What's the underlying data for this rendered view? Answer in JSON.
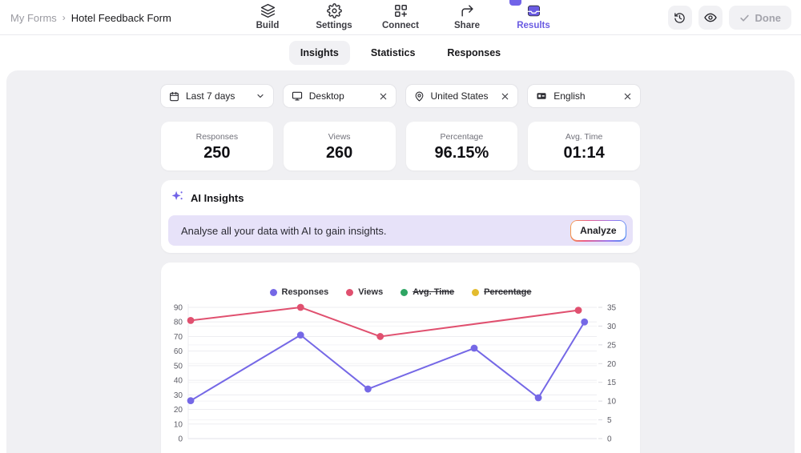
{
  "topbar": {
    "breadcrumb": {
      "parent": "My Forms",
      "separator": "›",
      "current": "Hotel Feedback Form"
    },
    "nav": {
      "items": [
        {
          "label": "Build",
          "icon": "layers-icon",
          "active": false
        },
        {
          "label": "Settings",
          "icon": "gear-icon",
          "active": false
        },
        {
          "label": "Connect",
          "icon": "grid-plus-icon",
          "active": false
        },
        {
          "label": "Share",
          "icon": "share-arrow-icon",
          "active": false
        },
        {
          "label": "Results",
          "icon": "inbox-icon",
          "active": true
        }
      ]
    },
    "actions": {
      "done_label": "Done"
    }
  },
  "tabs": {
    "items": [
      {
        "label": "Insights",
        "active": true
      },
      {
        "label": "Statistics",
        "active": false
      },
      {
        "label": "Responses",
        "active": false
      }
    ]
  },
  "filters": [
    {
      "icon": "calendar-icon",
      "label": "Last 7 days",
      "control": "chevron-down"
    },
    {
      "icon": "monitor-icon",
      "label": "Desktop",
      "control": "close"
    },
    {
      "icon": "map-pin-icon",
      "label": "United States",
      "control": "close"
    },
    {
      "icon": "language-icon",
      "label": "English",
      "control": "close"
    }
  ],
  "stats": [
    {
      "label": "Responses",
      "value": "250"
    },
    {
      "label": "Views",
      "value": "260"
    },
    {
      "label": "Percentage",
      "value": "96.15%"
    },
    {
      "label": "Avg. Time",
      "value": "01:14"
    }
  ],
  "ai_insights": {
    "title": "AI Insights",
    "message": "Analyse all your data with AI to gain insights.",
    "button_label": "Analyze"
  },
  "chart_data": {
    "type": "line",
    "title": "",
    "legend_position": "top",
    "grid": true,
    "legend": [
      {
        "name": "Responses",
        "color": "#7568e6",
        "hidden": false
      },
      {
        "name": "Views",
        "color": "#e0506f",
        "hidden": false
      },
      {
        "name": "Avg. Time",
        "color": "#2ea563",
        "hidden": true
      },
      {
        "name": "Percentage",
        "color": "#e3bc2f",
        "hidden": true
      }
    ],
    "axes": {
      "left": {
        "min": 0,
        "max": 90,
        "step": 10
      },
      "right": {
        "min": 0,
        "max": 35,
        "step": 5
      }
    },
    "series": [
      {
        "name": "Responses",
        "color": "#7568e6",
        "axis": "left",
        "points": [
          {
            "x": 0.006,
            "y": 26
          },
          {
            "x": 0.275,
            "y": 71
          },
          {
            "x": 0.44,
            "y": 34
          },
          {
            "x": 0.7,
            "y": 62
          },
          {
            "x": 0.857,
            "y": 28
          },
          {
            "x": 0.97,
            "y": 80
          }
        ]
      },
      {
        "name": "Views",
        "color": "#e0506f",
        "axis": "left",
        "points": [
          {
            "x": 0.006,
            "y": 81
          },
          {
            "x": 0.275,
            "y": 90
          },
          {
            "x": 0.47,
            "y": 70
          },
          {
            "x": 0.955,
            "y": 88
          }
        ]
      }
    ]
  },
  "colors": {
    "accent": "#6a5be2",
    "panel_bg": "#f0f0f3",
    "banner_bg": "#e7e2f9",
    "responses_line": "#7568e6",
    "views_line": "#e0506f"
  }
}
